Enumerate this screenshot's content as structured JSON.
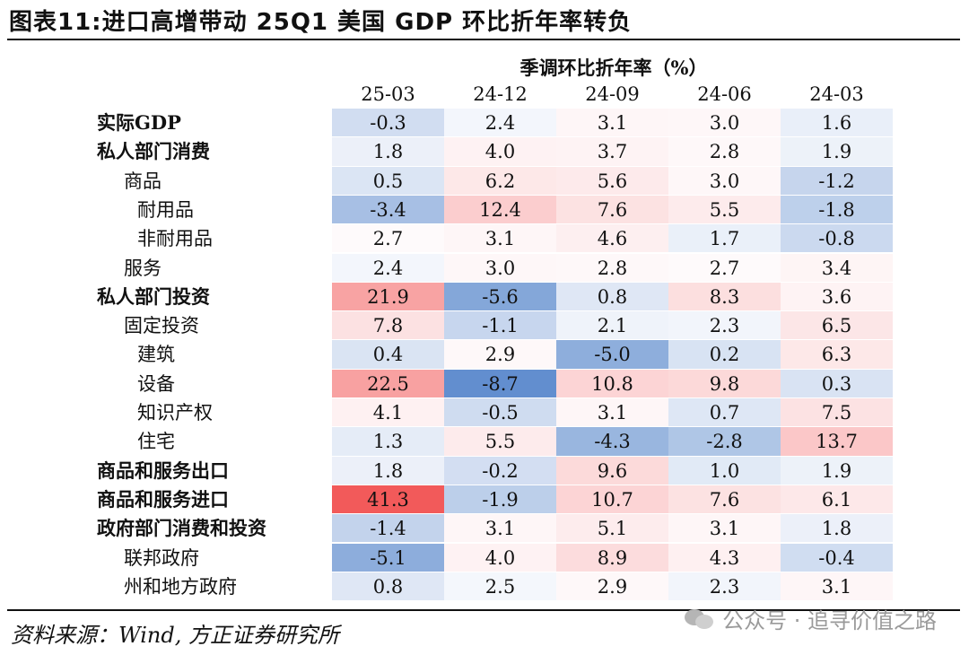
{
  "title": "图表11:进口高增带动 25Q1 美国 GDP 环比折年率转负",
  "chart_data": {
    "type": "table",
    "unit_label": "季调环比折年率（%）",
    "columns": [
      "25-03",
      "24-12",
      "24-09",
      "24-06",
      "24-03"
    ],
    "rows": [
      {
        "label": "实际GDP",
        "indent": 0,
        "bold": true,
        "values": [
          -0.3,
          2.4,
          3.1,
          3.0,
          1.6
        ]
      },
      {
        "label": "私人部门消费",
        "indent": 0,
        "bold": true,
        "values": [
          1.8,
          4.0,
          3.7,
          2.8,
          1.9
        ]
      },
      {
        "label": "商品",
        "indent": 1,
        "bold": false,
        "values": [
          0.5,
          6.2,
          5.6,
          3.0,
          -1.2
        ]
      },
      {
        "label": "耐用品",
        "indent": 2,
        "bold": false,
        "values": [
          -3.4,
          12.4,
          7.6,
          5.5,
          -1.8
        ]
      },
      {
        "label": "非耐用品",
        "indent": 2,
        "bold": false,
        "values": [
          2.7,
          3.1,
          4.6,
          1.7,
          -0.8
        ]
      },
      {
        "label": "服务",
        "indent": 1,
        "bold": false,
        "values": [
          2.4,
          3.0,
          2.8,
          2.7,
          3.4
        ]
      },
      {
        "label": "私人部门投资",
        "indent": 0,
        "bold": true,
        "values": [
          21.9,
          -5.6,
          0.8,
          8.3,
          3.6
        ]
      },
      {
        "label": "固定投资",
        "indent": 1,
        "bold": false,
        "values": [
          7.8,
          -1.1,
          2.1,
          2.3,
          6.5
        ]
      },
      {
        "label": "建筑",
        "indent": 2,
        "bold": false,
        "values": [
          0.4,
          2.9,
          -5.0,
          0.2,
          6.3
        ]
      },
      {
        "label": "设备",
        "indent": 2,
        "bold": false,
        "values": [
          22.5,
          -8.7,
          10.8,
          9.8,
          0.3
        ]
      },
      {
        "label": "知识产权",
        "indent": 2,
        "bold": false,
        "values": [
          4.1,
          -0.5,
          3.1,
          0.7,
          7.5
        ]
      },
      {
        "label": "住宅",
        "indent": 2,
        "bold": false,
        "values": [
          1.3,
          5.5,
          -4.3,
          -2.8,
          13.7
        ]
      },
      {
        "label": "商品和服务出口",
        "indent": 0,
        "bold": true,
        "values": [
          1.8,
          -0.2,
          9.6,
          1.0,
          1.9
        ]
      },
      {
        "label": "商品和服务进口",
        "indent": 0,
        "bold": true,
        "values": [
          41.3,
          -1.9,
          10.7,
          7.6,
          6.1
        ]
      },
      {
        "label": "政府部门消费和投资",
        "indent": 0,
        "bold": true,
        "values": [
          -1.4,
          3.1,
          5.1,
          3.1,
          1.8
        ]
      },
      {
        "label": "联邦政府",
        "indent": 1,
        "bold": false,
        "values": [
          -5.1,
          4.0,
          8.9,
          4.3,
          -0.4
        ]
      },
      {
        "label": "州和地方政府",
        "indent": 1,
        "bold": false,
        "values": [
          0.8,
          2.5,
          2.9,
          2.3,
          3.1
        ]
      }
    ],
    "colors": {
      "high": "#f25a5a",
      "mid": "#ffffff",
      "low": "#5a88cc"
    }
  },
  "footer": {
    "source": "资料来源：Wind, 方正证券研究所",
    "watermark": "公众号 · 追寻价值之路",
    "watermark_icon": "wechat-icon"
  }
}
